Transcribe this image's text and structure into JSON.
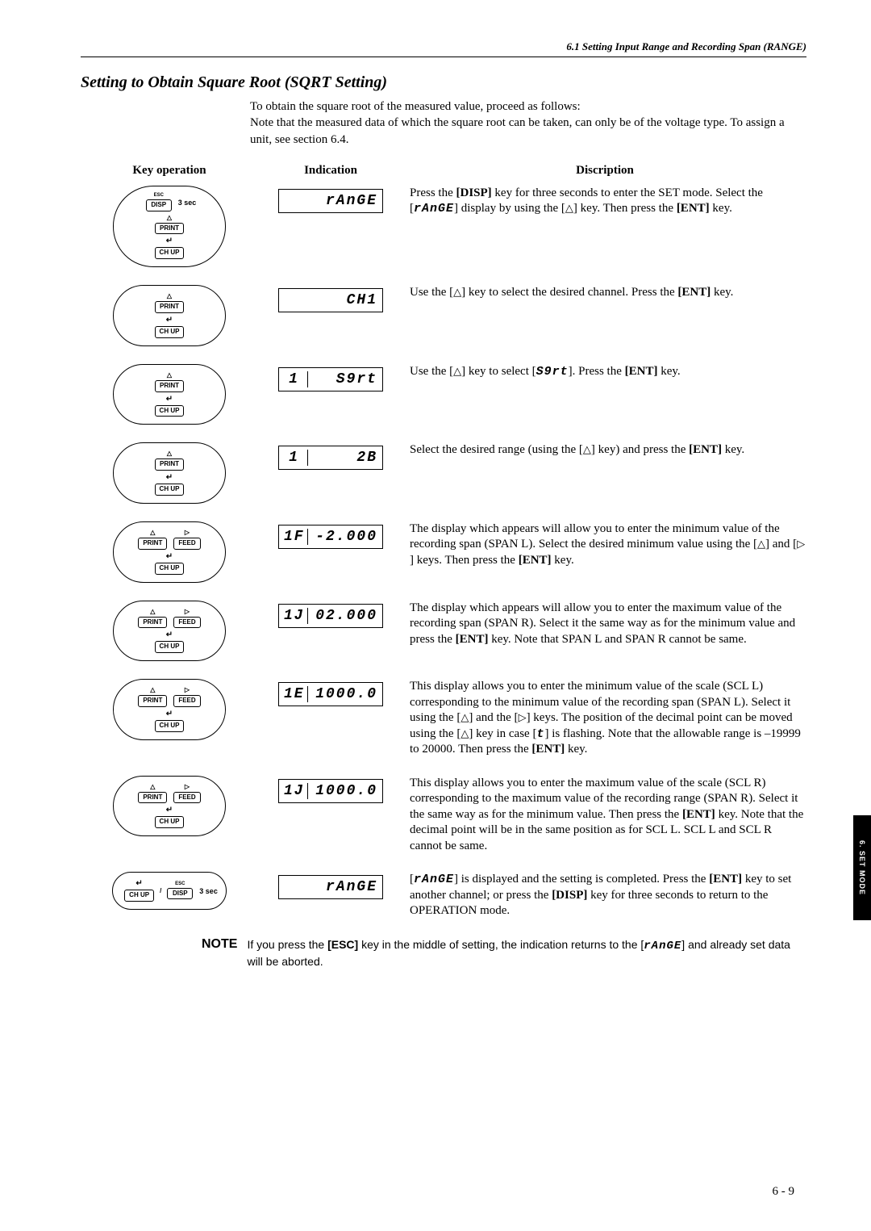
{
  "header": "6.1  Setting Input Range and Recording Span (RANGE)",
  "section_title": "Setting to Obtain Square Root (SQRT Setting)",
  "intro": "To obtain the square root of the measured value, proceed as follows:\nNote that the measured data of which the square root can be taken, can only be of the voltage type. To assign a unit, see section 6.4.",
  "columns": {
    "key": "Key operation",
    "indication": "Indication",
    "description": "Discription"
  },
  "keys": {
    "esc": "ESC",
    "disp": "DISP",
    "print": "PRINT",
    "chup": "CH UP",
    "feed": "FEED",
    "sec3": "3 sec"
  },
  "steps": [
    {
      "type": "initial",
      "lcd_prefix": "",
      "lcd_main": "rAnGE",
      "desc": "Press the <b>[DISP]</b> key for three seconds to enter the SET mode. Select the [<span class='inline-lcd'>rAnGE</span>] display by using the [<span class='tri-inline'>△</span>] key. Then press the <b>[ENT]</b> key."
    },
    {
      "type": "up_ent",
      "lcd_prefix": "",
      "lcd_main": "CH1",
      "desc": "Use the [<span class='tri-inline'>△</span>] key to select the desired channel. Press the <b>[ENT]</b> key."
    },
    {
      "type": "up_ent",
      "lcd_prefix": "1",
      "lcd_main": "S9rt",
      "desc": "Use the [<span class='tri-inline'>△</span>] key to select [<span class='inline-lcd'>S9rt</span>]. Press the <b>[ENT]</b> key."
    },
    {
      "type": "up_ent",
      "lcd_prefix": "1",
      "lcd_main": "2B",
      "desc": "Select the desired range (using the [<span class='tri-inline'>△</span>] key) and press the <b>[ENT]</b> key."
    },
    {
      "type": "up_right_ent",
      "lcd_prefix": "1F",
      "lcd_main": "-2.000",
      "desc": "The display which appears will allow you to enter the minimum value of the recording span (SPAN L). Select the desired minimum value using the [<span class='tri-inline'>△</span>] and [<span class='tri-inline'>▷</span>] keys. Then press the <b>[ENT]</b> key."
    },
    {
      "type": "up_right_ent",
      "lcd_prefix": "1J",
      "lcd_main": "02.000",
      "desc": "The display which appears will allow you to enter the maximum value of the recording span (SPAN R). Select it the same way as for the minimum value and press the <b>[ENT]</b> key. Note that SPAN L and SPAN R cannot be same."
    },
    {
      "type": "up_right_ent",
      "lcd_prefix": "1E",
      "lcd_main": "1000.0",
      "desc": "This display allows you to enter the minimum value of the scale (SCL L) corresponding to the minimum value of the recording span (SPAN L). Select it using the [<span class='tri-inline'>△</span>] and the [<span class='tri-inline'>▷</span>] keys. The position of the decimal point can be moved using the [<span class='tri-inline'>△</span>] key in case [<span class='inline-lcd'>t</span>] is flashing. Note that the allowable range is –19999 to 20000. Then press the <b>[ENT]</b> key."
    },
    {
      "type": "up_right_ent",
      "lcd_prefix": "1J",
      "lcd_main": "1000.0",
      "desc": "This display allows you to enter the maximum value of the scale (SCL R) corresponding to the maximum value of the recording range (SPAN R). Select it the same way as for the minimum value. Then press the <b>[ENT]</b> key. Note that the decimal point will be in the same position as for SCL L. SCL L and SCL R cannot be same."
    },
    {
      "type": "final",
      "lcd_prefix": "",
      "lcd_main": "rAnGE",
      "desc": "[<span class='inline-lcd'>rAnGE</span>] is displayed and the setting is completed. Press the <b>[ENT]</b> key to set another channel; or press the <b>[DISP]</b> key for three seconds to return to the OPERATION mode."
    }
  ],
  "note": {
    "label": "NOTE",
    "text": "If you press the <b>[ESC]</b> key in the middle of setting, the indication returns to the [<span class='inline-lcd'>rAnGE</span>] and already set data will be aborted."
  },
  "side_tab": "6.  SET MODE",
  "page_num": "6 - 9"
}
